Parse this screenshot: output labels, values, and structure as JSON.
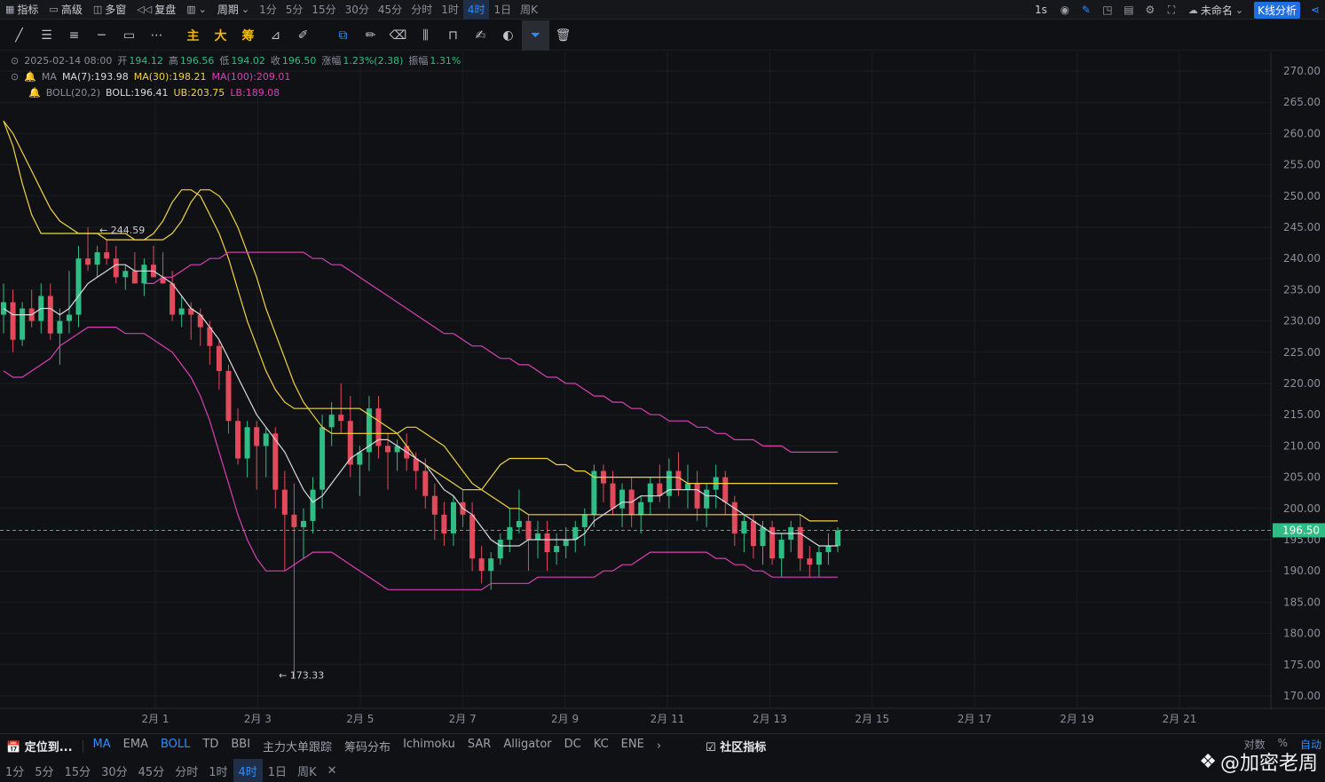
{
  "topbar": {
    "indicators_label": "指标",
    "advanced_label": "高级",
    "multiwindow_label": "多窗",
    "replay_label": "复盘",
    "period_label": "周期",
    "periods": [
      "1分",
      "5分",
      "15分",
      "30分",
      "45分",
      "分时",
      "1时",
      "4时",
      "1日",
      "周K"
    ],
    "active_period": "4时",
    "right_interval": "1s",
    "layout_name": "未命名",
    "kline_analysis": "K线分析"
  },
  "drawbar": {
    "tools": [
      "line",
      "multi-line",
      "parallel",
      "horizontal",
      "rect",
      "dots"
    ],
    "mode_labels": [
      "主",
      "大",
      "筹"
    ]
  },
  "legend": {
    "datetime": "2025-02-14 08:00",
    "open_label": "开",
    "open": "194.12",
    "high_label": "高",
    "high": "196.56",
    "low_label": "低",
    "low": "194.02",
    "close_label": "收",
    "close": "196.50",
    "change_label": "涨幅",
    "change": "1.23%(2.38)",
    "amp_label": "振幅",
    "amp": "1.31%",
    "ma_name": "MA",
    "ma7": "MA(7):193.98",
    "ma30": "MA(30):198.21",
    "ma100": "MA(100):209.01",
    "boll_name": "BOLL(20,2)",
    "boll": "BOLL:196.41",
    "ub": "UB:203.75",
    "lb": "LB:189.08"
  },
  "colors": {
    "up": "#2fbd85",
    "down": "#e24a5c",
    "ma7": "#d9dbe0",
    "ma30": "#f0d442",
    "ma100": "#d93fb6",
    "accent": "#2f8cff",
    "price_tag": "#2fbd85"
  },
  "chart_data": {
    "type": "candlestick",
    "y_ticks": [
      "270.00",
      "265.00",
      "260.00",
      "255.00",
      "250.00",
      "245.00",
      "240.00",
      "235.00",
      "230.00",
      "225.00",
      "220.00",
      "215.00",
      "210.00",
      "205.00",
      "200.00",
      "195.00",
      "190.00",
      "185.00",
      "180.00",
      "175.00",
      "170.00"
    ],
    "ylim": [
      168,
      272
    ],
    "x_ticks": [
      "2月 1",
      "2月 3",
      "2月 5",
      "2月 7",
      "2月 9",
      "2月 11",
      "2月 13",
      "2月 15",
      "2月 17",
      "2月 19",
      "2月 21"
    ],
    "current_price": "196.50",
    "high_annotation": "← 244.59",
    "low_annotation": "← 173.33",
    "candles_ohlc_approx": [
      [
        231,
        236,
        228,
        233
      ],
      [
        233,
        235,
        225,
        227
      ],
      [
        227,
        233,
        226,
        232
      ],
      [
        232,
        235,
        229,
        230
      ],
      [
        230,
        236,
        228,
        234
      ],
      [
        234,
        236,
        227,
        228
      ],
      [
        228,
        232,
        223,
        230
      ],
      [
        230,
        238,
        228,
        231
      ],
      [
        231,
        242,
        229,
        240
      ],
      [
        240,
        245,
        238,
        239
      ],
      [
        239,
        242,
        237,
        241
      ],
      [
        241,
        243,
        239,
        240
      ],
      [
        240,
        242,
        236,
        237
      ],
      [
        237,
        239,
        235,
        238
      ],
      [
        238,
        241,
        236,
        236
      ],
      [
        236,
        240,
        234,
        239
      ],
      [
        239,
        242,
        237,
        237
      ],
      [
        237,
        241,
        236,
        236
      ],
      [
        236,
        238,
        230,
        231
      ],
      [
        231,
        234,
        229,
        232
      ],
      [
        232,
        233,
        227,
        231
      ],
      [
        231,
        232,
        226,
        229
      ],
      [
        229,
        230,
        223,
        226
      ],
      [
        226,
        227,
        219,
        222
      ],
      [
        222,
        223,
        212,
        214
      ],
      [
        214,
        216,
        207,
        208
      ],
      [
        208,
        214,
        205,
        213
      ],
      [
        213,
        214,
        203,
        210
      ],
      [
        210,
        213,
        205,
        212
      ],
      [
        212,
        213,
        200,
        203
      ],
      [
        203,
        206,
        190,
        199
      ],
      [
        199,
        204,
        173,
        197
      ],
      [
        197,
        200,
        192,
        198
      ],
      [
        198,
        205,
        196,
        203
      ],
      [
        203,
        215,
        200,
        213
      ],
      [
        213,
        217,
        210,
        215
      ],
      [
        215,
        220,
        212,
        214
      ],
      [
        214,
        218,
        205,
        207
      ],
      [
        207,
        210,
        202,
        209
      ],
      [
        209,
        218,
        206,
        216
      ],
      [
        216,
        218,
        208,
        210
      ],
      [
        210,
        212,
        203,
        209
      ],
      [
        209,
        211,
        206,
        210
      ],
      [
        210,
        212,
        206,
        208
      ],
      [
        208,
        209,
        203,
        206
      ],
      [
        206,
        208,
        200,
        202
      ],
      [
        202,
        204,
        195,
        199
      ],
      [
        199,
        201,
        194,
        196
      ],
      [
        196,
        202,
        194,
        201
      ],
      [
        201,
        203,
        197,
        199
      ],
      [
        199,
        201,
        190,
        192
      ],
      [
        192,
        194,
        188,
        190
      ],
      [
        190,
        193,
        187,
        192
      ],
      [
        192,
        196,
        191,
        195
      ],
      [
        195,
        200,
        193,
        197
      ],
      [
        197,
        203,
        196,
        198
      ],
      [
        198,
        199,
        190,
        195
      ],
      [
        195,
        198,
        192,
        196
      ],
      [
        196,
        198,
        190,
        193
      ],
      [
        193,
        196,
        191,
        194
      ],
      [
        194,
        197,
        192,
        195
      ],
      [
        195,
        198,
        193,
        197
      ],
      [
        197,
        200,
        194,
        199
      ],
      [
        199,
        207,
        197,
        206
      ],
      [
        206,
        207,
        201,
        204
      ],
      [
        204,
        206,
        199,
        200
      ],
      [
        200,
        204,
        197,
        203
      ],
      [
        203,
        205,
        197,
        199
      ],
      [
        199,
        202,
        196,
        201
      ],
      [
        201,
        205,
        199,
        204
      ],
      [
        204,
        207,
        201,
        202
      ],
      [
        202,
        208,
        200,
        206
      ],
      [
        206,
        209,
        202,
        203
      ],
      [
        203,
        207,
        200,
        204
      ],
      [
        204,
        206,
        198,
        200
      ],
      [
        200,
        204,
        197,
        203
      ],
      [
        203,
        207,
        200,
        205
      ],
      [
        205,
        206,
        199,
        201
      ],
      [
        201,
        202,
        194,
        196
      ],
      [
        196,
        199,
        193,
        198
      ],
      [
        198,
        199,
        192,
        194
      ],
      [
        194,
        198,
        191,
        197
      ],
      [
        197,
        198,
        191,
        192
      ],
      [
        192,
        196,
        189,
        195
      ],
      [
        195,
        198,
        193,
        197
      ],
      [
        197,
        199,
        190,
        192
      ],
      [
        192,
        194,
        189,
        191
      ],
      [
        191,
        194,
        189,
        193
      ],
      [
        193,
        196,
        191,
        194
      ],
      [
        194,
        197,
        193,
        196.5
      ]
    ],
    "ma7_series_approx": [
      232,
      231,
      231,
      231,
      232,
      232,
      231,
      232,
      234,
      236,
      237,
      238,
      239,
      239,
      238,
      238,
      238,
      237,
      236,
      234,
      232,
      231,
      229,
      227,
      224,
      221,
      218,
      215,
      213,
      211,
      209,
      206,
      203,
      201,
      202,
      204,
      206,
      208,
      209,
      210,
      211,
      211,
      210,
      209,
      208,
      207,
      205,
      203,
      202,
      200,
      199,
      197,
      195,
      194,
      194,
      194,
      195,
      195,
      195,
      195,
      195,
      195,
      196,
      198,
      199,
      200,
      201,
      201,
      202,
      202,
      202,
      203,
      203,
      203,
      203,
      202,
      202,
      201,
      200,
      199,
      198,
      197,
      196,
      196,
      196,
      196,
      195,
      194,
      194,
      194
    ],
    "ma30_series_approx": [
      262,
      260,
      257,
      254,
      251,
      248,
      246,
      245,
      244,
      244,
      244,
      244,
      244,
      244,
      243,
      243,
      243,
      243,
      244,
      246,
      249,
      251,
      251,
      250,
      248,
      245,
      241,
      237,
      232,
      228,
      224,
      220,
      217,
      215,
      213,
      212,
      212,
      212,
      212,
      212,
      212,
      212,
      212,
      213,
      213,
      212,
      211,
      210,
      208,
      206,
      204,
      203,
      202,
      201,
      200,
      200,
      199,
      199,
      199,
      199,
      199,
      199,
      199,
      199,
      199,
      199,
      199,
      199,
      199,
      199,
      199,
      199,
      199,
      199,
      199,
      199,
      199,
      199,
      199,
      199,
      199,
      199,
      199,
      199,
      199,
      199,
      198,
      198,
      198,
      198
    ],
    "ma100_series_approx": [
      236,
      236,
      237,
      237,
      238,
      239,
      239,
      240,
      240,
      241,
      241,
      241,
      241,
      241,
      241,
      241,
      241,
      241,
      240,
      240,
      239,
      239,
      238,
      237,
      236,
      235,
      234,
      233,
      232,
      231,
      230,
      229,
      228,
      228,
      227,
      226,
      226,
      225,
      224,
      224,
      223,
      223,
      222,
      221,
      221,
      220,
      220,
      219,
      218,
      218,
      217,
      217,
      216,
      216,
      215,
      215,
      214,
      214,
      214,
      213,
      213,
      212,
      212,
      211,
      211,
      211,
      210,
      210,
      210,
      209,
      209,
      209,
      209,
      209,
      209
    ],
    "boll_ub_series_approx": [
      262,
      258,
      252,
      247,
      244,
      244,
      244,
      244,
      244,
      244,
      244,
      243,
      243,
      243,
      243,
      243,
      244,
      246,
      249,
      251,
      251,
      250,
      247,
      244,
      240,
      235,
      230,
      226,
      222,
      219,
      217,
      216,
      216,
      216,
      216,
      216,
      216,
      216,
      216,
      215,
      214,
      213,
      212,
      210,
      208,
      207,
      206,
      205,
      204,
      203,
      203,
      203,
      205,
      207,
      208,
      208,
      208,
      208,
      208,
      207,
      207,
      206,
      206,
      205,
      205,
      205,
      205,
      205,
      205,
      205,
      205,
      205,
      205,
      204,
      204,
      204,
      204,
      204,
      204,
      204,
      204,
      204,
      204,
      204,
      204,
      204,
      204,
      204,
      204,
      204
    ],
    "boll_lb_series_approx": [
      222,
      221,
      221,
      222,
      223,
      224,
      226,
      227,
      228,
      229,
      229,
      229,
      229,
      228,
      228,
      228,
      227,
      226,
      225,
      223,
      221,
      218,
      214,
      209,
      204,
      199,
      195,
      192,
      190,
      190,
      190,
      191,
      192,
      193,
      193,
      193,
      192,
      191,
      190,
      189,
      188,
      187,
      187,
      187,
      187,
      187,
      187,
      187,
      187,
      187,
      187,
      187,
      188,
      188,
      188,
      188,
      188,
      189,
      189,
      189,
      189,
      189,
      189,
      189,
      190,
      190,
      191,
      191,
      192,
      193,
      193,
      193,
      193,
      193,
      193,
      193,
      192,
      192,
      191,
      191,
      190,
      190,
      189,
      189,
      189,
      189,
      189,
      189,
      189,
      189
    ]
  },
  "bottombar": {
    "locate_label": "定位到...",
    "indicators": [
      "MA",
      "EMA",
      "BOLL",
      "TD",
      "BBI",
      "主力大单跟踪",
      "筹码分布",
      "Ichimoku",
      "SAR",
      "Alligator",
      "DC",
      "KC",
      "ENE"
    ],
    "active_indicators": [
      "MA",
      "BOLL"
    ],
    "community_label": "社区指标",
    "scale_opts": [
      "对数",
      "%",
      "自动"
    ],
    "periods": [
      "1分",
      "5分",
      "15分",
      "30分",
      "45分",
      "分时",
      "1时",
      "4时",
      "1日",
      "周K"
    ],
    "active_period": "4时",
    "watermark": "@加密老周"
  }
}
